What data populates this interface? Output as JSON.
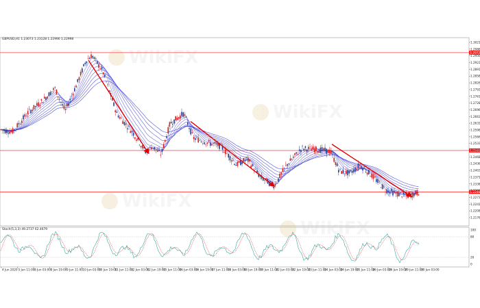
{
  "header": {
    "symbol_info": "GBPUSD,H1  1.23073 1.23128 1.22990 1.22998"
  },
  "oscillator": {
    "label": "Stoch(5,3,3) 49.2737 62.4679",
    "levels": [
      "100",
      "80",
      "20",
      "0"
    ]
  },
  "watermark": {
    "text": "WikiFX"
  },
  "colors": {
    "bull_candle": "#d41c1c",
    "bear_candle": "#243c94",
    "ema_ribbon": "#2b2bd0",
    "level_line": "#ff3b3b",
    "trend_arrow": "#e00000",
    "stoch_main": "#3aa6a0",
    "stoch_signal": "#d23c3c",
    "price_badge": "#ff2020"
  },
  "chart_data": {
    "type": "candlestick",
    "price_axis_labels": [
      "1.30210",
      "1.29885",
      "1.29560",
      "1.29235",
      "1.28910",
      "1.28585",
      "1.28260",
      "1.27935",
      "1.27610",
      "1.27285",
      "1.26960",
      "1.26635",
      "1.26310",
      "1.25985",
      "1.25660",
      "1.25335",
      "1.25010",
      "1.24685",
      "1.24360",
      "1.24035",
      "1.23710",
      "1.23385",
      "1.23060",
      "1.22735",
      "1.22410",
      "1.22085",
      "1.21760"
    ],
    "horizontal_levels": [
      {
        "price": 1.2972,
        "label": "1.29720"
      },
      {
        "price": 1.25,
        "label": "1.25000"
      },
      {
        "price": 1.23,
        "label": "1.22998"
      }
    ],
    "time_labels": [
      "4 Jun 2020",
      "5 Jun 11:00",
      "8 Jun 03:00",
      "8 Jun 19:00",
      "9 Jun 11:00",
      "10 Jun 03:00",
      "10 Jun 19:00",
      "11 Jun 11:00",
      "12 Jun 03:00",
      "12 Jun 19:00",
      "15 Jun 11:00",
      "16 Jun 03:00",
      "16 Jun 19:00",
      "17 Jun 11:00",
      "18 Jun 03:00",
      "18 Jun 19:00",
      "19 Jun 11:00",
      "22 Jun 03:00",
      "22 Jun 19:00",
      "23 Jun 11:00",
      "24 Jun 03:00",
      "24 Jun 19:00",
      "25 Jun 11:00",
      "26 Jun 03:00",
      "26 Jun 19:00",
      "29 Jun 11:00",
      "30 Jun 03:00"
    ],
    "price_path": [
      [
        0,
        1.26
      ],
      [
        18,
        1.259
      ],
      [
        40,
        1.268
      ],
      [
        62,
        1.274
      ],
      [
        80,
        1.28
      ],
      [
        95,
        1.269
      ],
      [
        112,
        1.282
      ],
      [
        125,
        1.293
      ],
      [
        134,
        1.296
      ],
      [
        150,
        1.288
      ],
      [
        170,
        1.268
      ],
      [
        195,
        1.258
      ],
      [
        213,
        1.249
      ],
      [
        222,
        1.252
      ],
      [
        235,
        1.248
      ],
      [
        248,
        1.263
      ],
      [
        268,
        1.268
      ],
      [
        282,
        1.256
      ],
      [
        300,
        1.254
      ],
      [
        322,
        1.252
      ],
      [
        345,
        1.243
      ],
      [
        360,
        1.246
      ],
      [
        380,
        1.237
      ],
      [
        400,
        1.233
      ],
      [
        418,
        1.243
      ],
      [
        440,
        1.251
      ],
      [
        462,
        1.2505
      ],
      [
        482,
        1.2495
      ],
      [
        495,
        1.24
      ],
      [
        510,
        1.239
      ],
      [
        525,
        1.243
      ],
      [
        545,
        1.237
      ],
      [
        562,
        1.231
      ],
      [
        580,
        1.229
      ],
      [
        595,
        1.228
      ],
      [
        612,
        1.23
      ]
    ],
    "trend_lines": [
      {
        "from": [
          129,
          1.2935
        ],
        "to": [
          216,
          1.249
        ]
      },
      {
        "from": [
          278,
          1.264
        ],
        "to": [
          399,
          1.233
        ]
      },
      {
        "from": [
          484,
          1.253
        ],
        "to": [
          599,
          1.228
        ]
      }
    ]
  }
}
